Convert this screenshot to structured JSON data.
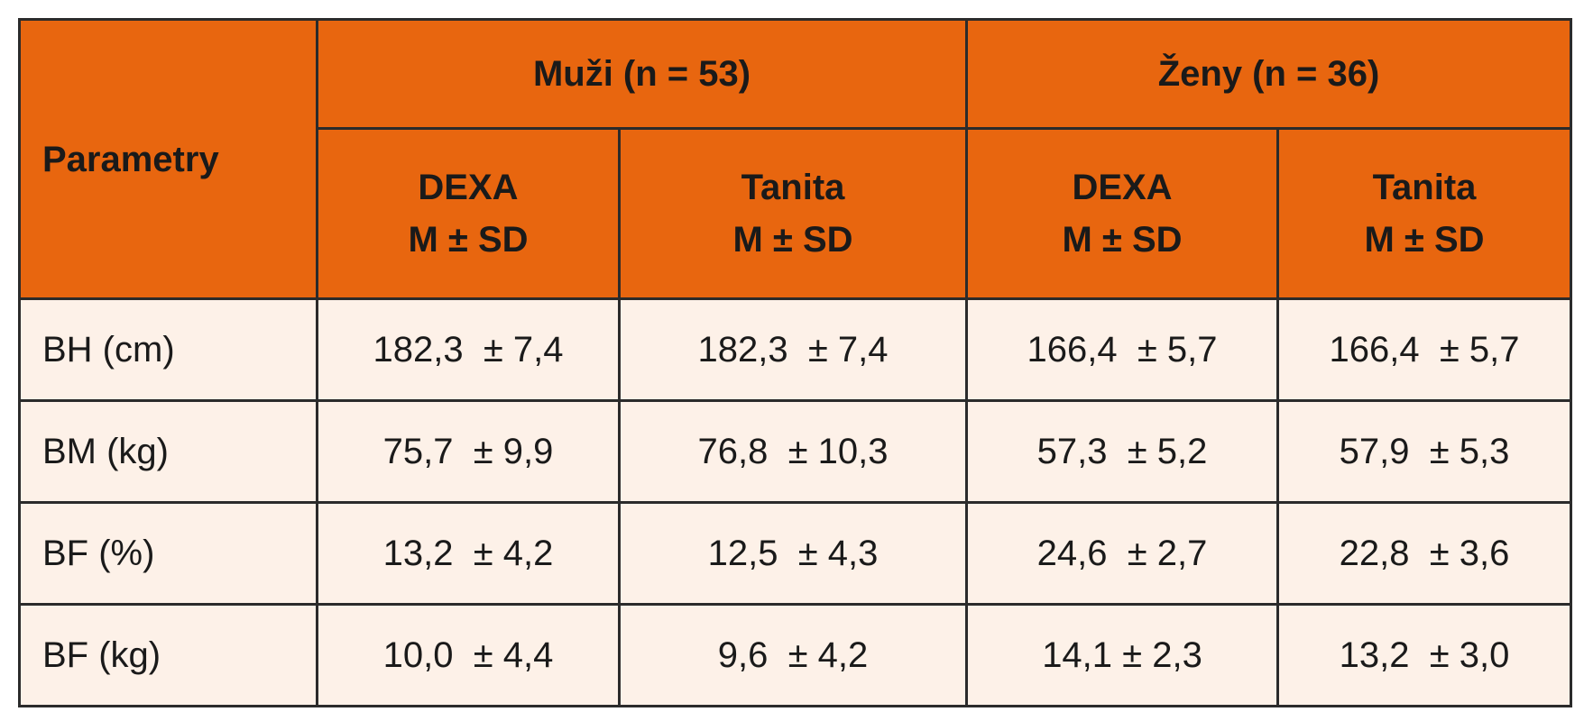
{
  "table": {
    "row_header": "Parametry",
    "groups": [
      "Muži (n = 53)",
      "Ženy (n = 36)"
    ],
    "subheaders": [
      {
        "method": "DEXA",
        "stat": "M ± SD"
      },
      {
        "method": "Tanita",
        "stat": "M ± SD"
      },
      {
        "method": "DEXA",
        "stat": "M ± SD"
      },
      {
        "method": "Tanita",
        "stat": "M ± SD"
      }
    ],
    "rows": [
      {
        "label": "BH (cm)",
        "cells": [
          "182,3  ± 7,4",
          "182,3  ± 7,4",
          "166,4  ± 5,7",
          "166,4  ± 5,7"
        ]
      },
      {
        "label": "BM (kg)",
        "cells": [
          "75,7  ± 9,9",
          "76,8  ± 10,3",
          "57,3  ± 5,2",
          "57,9  ± 5,3"
        ]
      },
      {
        "label": "BF (%)",
        "cells": [
          "13,2  ± 4,2",
          "12,5  ± 4,3",
          "24,6  ± 2,7",
          "22,8  ± 3,6"
        ]
      },
      {
        "label": "BF (kg)",
        "cells": [
          "10,0  ± 4,4",
          "9,6  ± 4,2",
          "14,1 ± 2,3",
          "13,2  ± 3,0"
        ]
      }
    ]
  }
}
